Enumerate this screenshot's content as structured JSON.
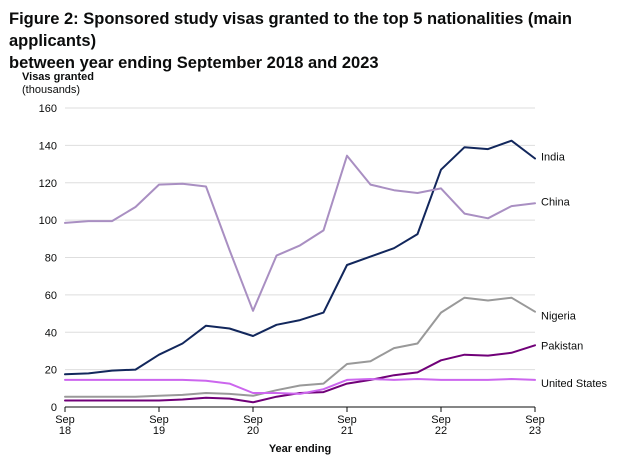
{
  "title_line1": "Figure 2: Sponsored study visas granted to the top 5 nationalities (main applicants)",
  "title_line2": "between year ending September 2018 and 2023",
  "chart_data": {
    "type": "line",
    "title": "Figure 2: Sponsored study visas granted to the top 5 nationalities (main applicants) between year ending September 2018 and 2023",
    "xlabel": "Year ending",
    "ylabel": "Visas granted",
    "ylabel_sub": "(thousands)",
    "ylim": [
      0,
      160
    ],
    "y_ticks": [
      0,
      20,
      40,
      60,
      80,
      100,
      120,
      140,
      160
    ],
    "x_tick_labels": [
      {
        "line1": "Sep",
        "line2": "18"
      },
      {
        "line1": "Sep",
        "line2": "19"
      },
      {
        "line1": "Sep",
        "line2": "20"
      },
      {
        "line1": "Sep",
        "line2": "21"
      },
      {
        "line1": "Sep",
        "line2": "22"
      },
      {
        "line1": "Sep",
        "line2": "23"
      }
    ],
    "grid": "horizontal",
    "legend": "direct labels at line ends",
    "x": [
      "Sep 2018",
      "Dec 2018",
      "Mar 2019",
      "Jun 2019",
      "Sep 2019",
      "Dec 2019",
      "Mar 2020",
      "Jun 2020",
      "Sep 2020",
      "Dec 2020",
      "Mar 2021",
      "Jun 2021",
      "Sep 2021",
      "Dec 2021",
      "Mar 2022",
      "Jun 2022",
      "Sep 2022",
      "Dec 2022",
      "Mar 2023",
      "Jun 2023",
      "Sep 2023"
    ],
    "series": [
      {
        "name": "India",
        "color": "#12275c",
        "values": [
          17.5,
          18,
          19.5,
          20,
          28,
          34,
          43.5,
          42,
          38,
          44,
          46.5,
          50.5,
          76,
          80.5,
          85,
          92.5,
          127,
          139,
          138,
          142.5,
          133
        ]
      },
      {
        "name": "China",
        "color": "#a98fc2",
        "values": [
          98.5,
          99.5,
          99.5,
          107,
          119,
          119.5,
          118,
          84,
          51.5,
          81,
          86.5,
          94.5,
          134.5,
          119,
          116,
          114.5,
          117,
          103.5,
          101,
          107.5,
          109
        ]
      },
      {
        "name": "Nigeria",
        "color": "#999999",
        "values": [
          5.5,
          5.5,
          5.5,
          5.5,
          6,
          6.5,
          7.5,
          7,
          6,
          9,
          11.5,
          12.5,
          23,
          24.5,
          31.5,
          34,
          50.5,
          58.5,
          57,
          58.5,
          51
        ]
      },
      {
        "name": "Pakistan",
        "color": "#700078",
        "values": [
          3.5,
          3.5,
          3.5,
          3.5,
          3.5,
          4,
          5,
          4.5,
          2.5,
          5.5,
          7.5,
          8,
          12.5,
          14.5,
          17,
          18.5,
          25,
          28,
          27.5,
          29,
          33
        ]
      },
      {
        "name": "United States",
        "color": "#cc66ee",
        "values": [
          14.5,
          14.5,
          14.5,
          14.5,
          14.5,
          14.5,
          14,
          12.5,
          7.5,
          7.5,
          7,
          9.5,
          14.5,
          15,
          14.5,
          15,
          14.5,
          14.5,
          14.5,
          15,
          14.5
        ]
      }
    ]
  }
}
